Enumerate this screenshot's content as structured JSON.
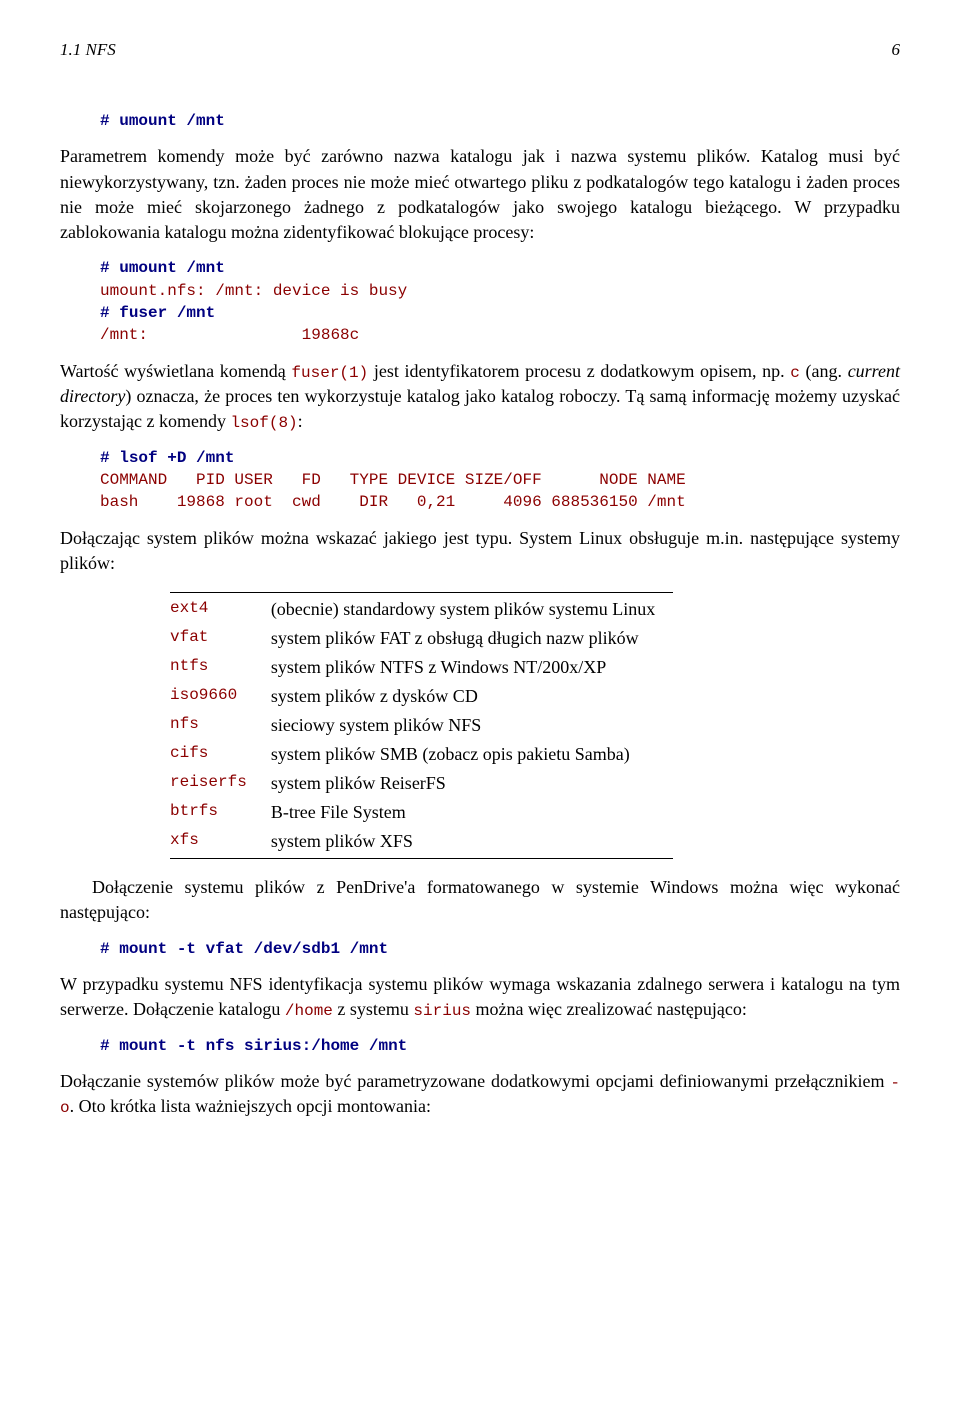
{
  "header": {
    "section": "1.1 NFS",
    "page_number": "6"
  },
  "code1": {
    "prompt": "#",
    "cmd": "umount /mnt"
  },
  "para1": "Parametrem komendy może być zarówno nazwa katalogu jak i nazwa systemu plików. Katalog musi być niewykorzystywany, tzn. żaden proces nie może mieć otwartego pliku z podkatalogów tego katalogu i żaden proces nie może mieć skojarzonego żadnego z podkatalogów jako swojego katalogu bieżącego. W przypadku zablokowania katalogu można zidentyfikować blokujące procesy:",
  "code2": {
    "line1_prompt": "#",
    "line1_cmd": "umount /mnt",
    "line2": "umount.nfs: /mnt: device is busy",
    "line3_prompt": "#",
    "line3_cmd": "fuser /mnt",
    "line4": "/mnt:                19868c"
  },
  "para2_a": "Wartość wyświetlana komendą ",
  "para2_code1": "fuser(1)",
  "para2_b": " jest identyfikatorem procesu z dodatkowym opisem, np. ",
  "para2_code2": "c",
  "para2_c": " (ang. ",
  "para2_italic": "current directory",
  "para2_d": ") oznacza, że proces ten wykorzystuje katalog jako katalog roboczy. Tą samą informację możemy uzyskać korzystając z komendy ",
  "para2_code3": "lsof(8)",
  "para2_e": ":",
  "code3": {
    "line1_prompt": "#",
    "line1_cmd": "lsof +D /mnt",
    "line2": "COMMAND   PID USER   FD   TYPE DEVICE SIZE/OFF      NODE NAME",
    "line3": "bash    19868 root  cwd    DIR   0,21     4096 688536150 /mnt"
  },
  "para3": "Dołączając system plików można wskazać jakiego jest typu. System Linux obsługuje m.in. następujące systemy plików:",
  "fs_table": [
    {
      "name": "ext4",
      "desc": "(obecnie) standardowy system plików systemu Linux"
    },
    {
      "name": "vfat",
      "desc": "system plików FAT z obsługą długich nazw plików"
    },
    {
      "name": "ntfs",
      "desc": "system plików NTFS z Windows NT/200x/XP"
    },
    {
      "name": "iso9660",
      "desc": "system plików z dysków CD"
    },
    {
      "name": "nfs",
      "desc": "sieciowy system plików NFS"
    },
    {
      "name": "cifs",
      "desc": "system plików SMB (zobacz opis pakietu Samba)"
    },
    {
      "name": "reiserfs",
      "desc": "system plików ReiserFS"
    },
    {
      "name": "btrfs",
      "desc": "B-tree File System"
    },
    {
      "name": "xfs",
      "desc": "system plików XFS"
    }
  ],
  "para4": "Dołączenie systemu plików z PenDrive'a formatowanego w systemie Windows można więc wykonać następująco:",
  "code4": {
    "prompt": "#",
    "cmd": "mount -t vfat /dev/sdb1 /mnt"
  },
  "para5_a": "W przypadku systemu NFS identyfikacja systemu plików wymaga wskazania zdalnego serwera i katalogu na tym serwerze. Dołączenie katalogu ",
  "para5_code1": "/home",
  "para5_b": " z systemu ",
  "para5_code2": "sirius",
  "para5_c": " można więc zrealizować następująco:",
  "code5": {
    "prompt": "#",
    "cmd": "mount -t nfs sirius:/home /mnt"
  },
  "para6_a": "Dołączanie systemów plików może być parametryzowane dodatkowymi opcjami definiowanymi przełącznikiem ",
  "para6_code1": "-o",
  "para6_b": ". Oto krótka lista ważniejszych opcji montowania:",
  "colors": {
    "keyword": "#000080",
    "value": "#8b0000",
    "text": "#000000",
    "background": "#ffffff"
  },
  "fonts": {
    "body_family": "Georgia serif",
    "body_size_pt": 13,
    "mono_family": "Courier New",
    "mono_size_pt": 12
  }
}
